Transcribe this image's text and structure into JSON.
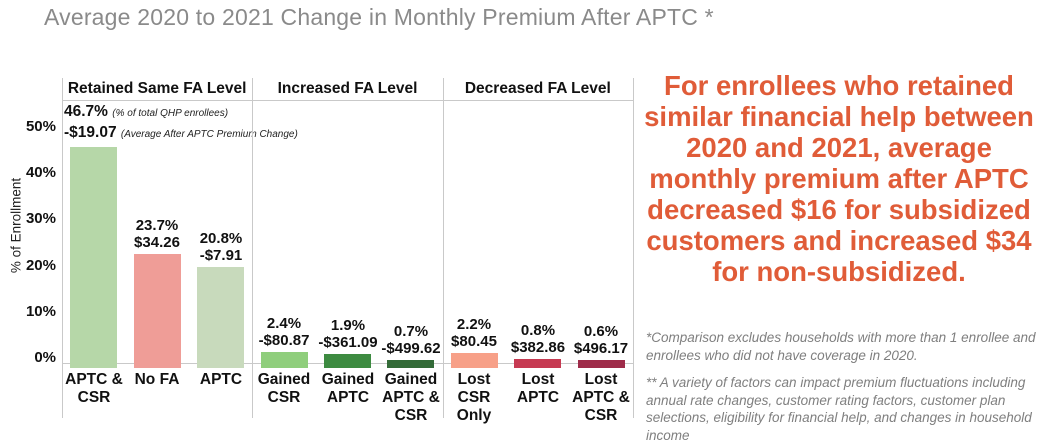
{
  "title": "Average 2020 to 2021 Change in Monthly Premium After APTC *",
  "headline": "For enrollees who retained similar financial help between 2020 and 2021, average monthly premium after APTC decreased $16 for subsidized customers and increased $34 for non-subsidized.",
  "footnotes": [
    "*Comparison excludes households with more than 1 enrollee and enrollees who did not have coverage in 2020.",
    "** A variety of factors can impact premium fluctuations including annual rate changes, customer rating factors, customer plan selections, eligibility for financial help, and changes in household income"
  ],
  "colors": {
    "title_gray": "#8a8a8a",
    "headline_orange": "#e05c38",
    "footnote_gray": "#7f7f7f",
    "axis_line": "#c9c9c9",
    "text_black": "#111111"
  },
  "chart_data": {
    "type": "bar",
    "ylabel": "% of Enrollment",
    "ylim": [
      0,
      50
    ],
    "yticks": [
      "0%",
      "10%",
      "20%",
      "30%",
      "40%",
      "50%"
    ],
    "ytick_values": [
      0,
      10,
      20,
      30,
      40,
      50
    ],
    "grid": "baseline-only",
    "legend": "none",
    "first_bar_notes": {
      "pct_note": "(% of total QHP enrollees)",
      "dollar_note": "(Average After APTC Premium Change)"
    },
    "groups": [
      {
        "label": "Retained Same FA Level",
        "bars": [
          {
            "category": "APTC & CSR",
            "lines": [
              "APTC &",
              "CSR"
            ],
            "pct": 46.7,
            "pct_label": "46.7%",
            "dollar": "-$19.07",
            "color": "#b6d7a8"
          },
          {
            "category": "No FA",
            "lines": [
              "No FA"
            ],
            "pct": 23.7,
            "pct_label": "23.7%",
            "dollar": "$34.26",
            "color": "#ef9d97"
          },
          {
            "category": "APTC",
            "lines": [
              "APTC"
            ],
            "pct": 20.8,
            "pct_label": "20.8%",
            "dollar": "-$7.91",
            "color": "#c8dabc"
          }
        ]
      },
      {
        "label": "Increased FA Level",
        "bars": [
          {
            "category": "Gained CSR",
            "lines": [
              "Gained",
              "CSR"
            ],
            "pct": 2.4,
            "pct_label": "2.4%",
            "dollar": "-$80.87",
            "color": "#8fce7c"
          },
          {
            "category": "Gained APTC",
            "lines": [
              "Gained",
              "APTC"
            ],
            "pct": 1.9,
            "pct_label": "1.9%",
            "dollar": "-$361.09",
            "color": "#3d8b41"
          },
          {
            "category": "Gained APTC & CSR",
            "lines": [
              "Gained",
              "APTC &",
              "CSR"
            ],
            "pct": 0.7,
            "pct_label": "0.7%",
            "dollar": "-$499.62",
            "color": "#336b38"
          }
        ]
      },
      {
        "label": "Decreased FA Level",
        "bars": [
          {
            "category": "Lost CSR Only",
            "lines": [
              "Lost",
              "CSR",
              "Only"
            ],
            "pct": 2.2,
            "pct_label": "2.2%",
            "dollar": "$80.45",
            "color": "#f7a088"
          },
          {
            "category": "Lost APTC",
            "lines": [
              "Lost",
              "APTC"
            ],
            "pct": 0.8,
            "pct_label": "0.8%",
            "dollar": "$382.86",
            "color": "#c63a52"
          },
          {
            "category": "Lost APTC & CSR",
            "lines": [
              "Lost",
              "APTC &",
              "CSR"
            ],
            "pct": 0.6,
            "pct_label": "0.6%",
            "dollar": "$496.17",
            "color": "#9e2b49"
          }
        ]
      }
    ]
  }
}
